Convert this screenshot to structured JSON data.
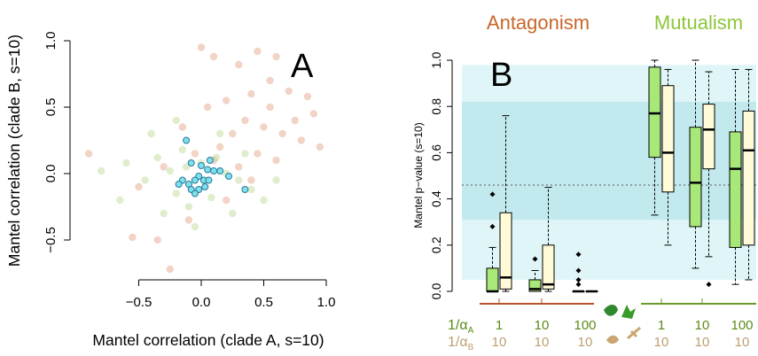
{
  "chart_data": [
    {
      "type": "scatter",
      "panel_label": "A",
      "xlabel": "Mantel correlation (clade A, s=10)",
      "ylabel": "Mantel correlation (clade B, s=10)",
      "xlim": [
        -1.0,
        1.05
      ],
      "ylim": [
        -0.78,
        1.05
      ],
      "xticks": [
        "-0.5",
        "0.0",
        "0.5",
        "1.0"
      ],
      "yticks": [
        "-0.5",
        "0.0",
        "0.5",
        "1.0"
      ],
      "series": [
        {
          "color": "#e0a080",
          "points": [
            [
              0.0,
              0.95
            ],
            [
              0.1,
              0.88
            ],
            [
              0.45,
              0.92
            ],
            [
              0.6,
              0.88
            ],
            [
              0.3,
              0.82
            ],
            [
              0.55,
              0.7
            ],
            [
              0.7,
              0.62
            ],
            [
              0.85,
              0.58
            ],
            [
              0.9,
              0.45
            ],
            [
              0.4,
              0.6
            ],
            [
              0.2,
              0.55
            ],
            [
              0.35,
              0.4
            ],
            [
              0.5,
              0.35
            ],
            [
              0.65,
              0.3
            ],
            [
              0.8,
              0.25
            ],
            [
              0.95,
              0.2
            ],
            [
              0.25,
              0.3
            ],
            [
              0.15,
              0.2
            ],
            [
              0.45,
              0.15
            ],
            [
              0.6,
              0.1
            ],
            [
              0.3,
              0.05
            ],
            [
              0.1,
              0.1
            ],
            [
              -0.05,
              0.15
            ],
            [
              -0.15,
              0.35
            ],
            [
              -0.3,
              0.05
            ],
            [
              -0.5,
              -0.1
            ],
            [
              -0.55,
              -0.48
            ],
            [
              -0.35,
              -0.5
            ],
            [
              -0.25,
              -0.72
            ],
            [
              -0.1,
              -0.35
            ],
            [
              0.2,
              -0.2
            ],
            [
              0.4,
              -0.05
            ],
            [
              -0.9,
              0.15
            ],
            [
              0.75,
              0.4
            ],
            [
              0.05,
              0.5
            ],
            [
              0.55,
              0.5
            ]
          ]
        },
        {
          "color": "#b8d890",
          "points": [
            [
              -0.8,
              0.02
            ],
            [
              -0.6,
              0.08
            ],
            [
              -0.45,
              -0.05
            ],
            [
              -0.35,
              0.12
            ],
            [
              -0.25,
              0.02
            ],
            [
              -0.2,
              -0.15
            ],
            [
              -0.1,
              -0.25
            ],
            [
              -0.15,
              0.18
            ],
            [
              0.0,
              0.08
            ],
            [
              0.05,
              -0.05
            ],
            [
              0.12,
              0.12
            ],
            [
              0.2,
              0.0
            ],
            [
              0.3,
              -0.05
            ],
            [
              0.4,
              -0.12
            ],
            [
              0.5,
              -0.2
            ],
            [
              0.25,
              -0.3
            ],
            [
              -0.05,
              -0.4
            ],
            [
              -0.3,
              -0.3
            ],
            [
              -0.4,
              0.3
            ],
            [
              0.15,
              0.3
            ],
            [
              0.6,
              -0.05
            ],
            [
              -0.65,
              -0.2
            ],
            [
              0.35,
              0.15
            ],
            [
              -0.2,
              0.4
            ],
            [
              0.08,
              -0.18
            ],
            [
              -0.12,
              0.05
            ]
          ]
        },
        {
          "color": "#7ee0e8",
          "points": [
            [
              -0.12,
              0.25
            ],
            [
              -0.08,
              0.08
            ],
            [
              0.0,
              0.06
            ],
            [
              0.05,
              0.03
            ],
            [
              0.07,
              0.1
            ],
            [
              -0.02,
              -0.02
            ],
            [
              0.1,
              0.02
            ],
            [
              0.15,
              0.02
            ],
            [
              0.22,
              -0.02
            ],
            [
              -0.05,
              -0.05
            ],
            [
              0.02,
              -0.05
            ],
            [
              0.06,
              -0.05
            ],
            [
              -0.15,
              -0.05
            ],
            [
              -0.18,
              -0.08
            ],
            [
              -0.1,
              -0.08
            ],
            [
              -0.08,
              -0.12
            ],
            [
              -0.02,
              -0.12
            ],
            [
              0.03,
              -0.1
            ],
            [
              0.35,
              -0.12
            ],
            [
              -0.05,
              -0.15
            ]
          ]
        }
      ]
    },
    {
      "type": "box",
      "panel_label": "B",
      "title_left": "Antagonism",
      "title_right": "Mutualism",
      "ylabel": "Mantel p−value (s=10)",
      "ylim": [
        0.0,
        1.0
      ],
      "yticks": [
        "0.0",
        "0.2",
        "0.4",
        "0.6",
        "0.8",
        "1.0"
      ],
      "reference_line": 0.46,
      "bands": [
        {
          "from": 0.05,
          "to": 0.98,
          "color": "#dff5f7"
        },
        {
          "from": 0.31,
          "to": 0.82,
          "color": "#c2e9ee"
        }
      ],
      "row_labels": {
        "alpha_a": "1/αA",
        "alpha_b": "1/αB"
      },
      "groups": [
        {
          "alpha_a": "1",
          "alpha_b": "10",
          "boxes": [
            {
              "fill": "#a8e878",
              "whislo": 0.0,
              "q1": 0.0,
              "med": 0.0,
              "q3": 0.1,
              "whishi": 0.19,
              "outliers": [
                0.28,
                0.42
              ]
            },
            {
              "fill": "#fffbd8",
              "whislo": 0.0,
              "q1": 0.01,
              "med": 0.06,
              "q3": 0.34,
              "whishi": 0.76,
              "outliers": []
            }
          ]
        },
        {
          "alpha_a": "10",
          "alpha_b": "10",
          "boxes": [
            {
              "fill": "#a8e878",
              "whislo": 0.0,
              "q1": 0.0,
              "med": 0.01,
              "q3": 0.05,
              "whishi": 0.09,
              "outliers": [
                0.14
              ]
            },
            {
              "fill": "#fffbd8",
              "whislo": 0.0,
              "q1": 0.01,
              "med": 0.03,
              "q3": 0.2,
              "whishi": 0.45,
              "outliers": []
            }
          ]
        },
        {
          "alpha_a": "100",
          "alpha_b": "10",
          "boxes": [
            {
              "fill": "#a8e878",
              "whislo": 0.0,
              "q1": 0.0,
              "med": 0.0,
              "q3": 0.0,
              "whishi": 0.0,
              "outliers": [
                0.03,
                0.05,
                0.09,
                0.16
              ]
            },
            {
              "fill": "#fffbd8",
              "whislo": 0.0,
              "q1": 0.0,
              "med": 0.0,
              "q3": 0.0,
              "whishi": 0.0,
              "outliers": []
            }
          ]
        },
        {
          "alpha_a": "1",
          "alpha_b": "10",
          "boxes": [
            {
              "fill": "#a8e878",
              "whislo": 0.33,
              "q1": 0.58,
              "med": 0.77,
              "q3": 0.97,
              "whishi": 1.0,
              "outliers": []
            },
            {
              "fill": "#fffbd8",
              "whislo": 0.2,
              "q1": 0.43,
              "med": 0.6,
              "q3": 0.89,
              "whishi": 0.96,
              "outliers": []
            }
          ]
        },
        {
          "alpha_a": "10",
          "alpha_b": "10",
          "boxes": [
            {
              "fill": "#a8e878",
              "whislo": 0.1,
              "q1": 0.28,
              "med": 0.47,
              "q3": 0.71,
              "whishi": 1.0,
              "outliers": []
            },
            {
              "fill": "#fffbd8",
              "whislo": 0.15,
              "q1": 0.53,
              "med": 0.7,
              "q3": 0.81,
              "whishi": 0.95,
              "outliers": [
                0.03
              ]
            }
          ]
        },
        {
          "alpha_a": "100",
          "alpha_b": "10",
          "boxes": [
            {
              "fill": "#a8e878",
              "whislo": 0.03,
              "q1": 0.19,
              "med": 0.53,
              "q3": 0.69,
              "whishi": 0.96,
              "outliers": []
            },
            {
              "fill": "#fffbd8",
              "whislo": 0.05,
              "q1": 0.2,
              "med": 0.61,
              "q3": 0.78,
              "whishi": 0.96,
              "outliers": []
            }
          ]
        }
      ]
    }
  ]
}
